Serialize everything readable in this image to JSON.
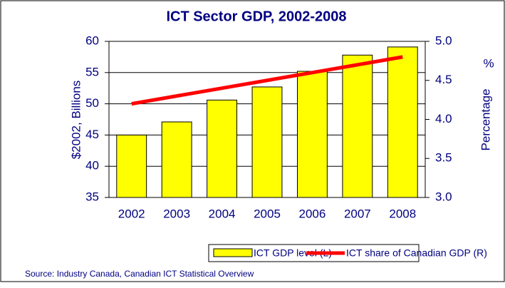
{
  "chart_data": {
    "type": "bar_line",
    "title": "ICT Sector GDP, 2002-2008",
    "y_label": "$2002, Billions",
    "y2_label": "Percentage",
    "y2_unit": "%",
    "source": "Source: Industry Canada, Canadian ICT Statistical Overview",
    "categories": [
      "2002",
      "2003",
      "2004",
      "2005",
      "2006",
      "2007",
      "2008"
    ],
    "series": [
      {
        "name": "ICT GDP level (L)",
        "type": "bar",
        "color": "#ffff00",
        "values": [
          45,
          47.1,
          50.6,
          52.7,
          55.2,
          57.8,
          59.1
        ]
      },
      {
        "name": "ICT share of Canadian GDP (R)",
        "type": "line",
        "axis": "y2",
        "color": "#ff0000",
        "values": [
          4.2,
          4.3,
          4.4,
          4.5,
          4.6,
          4.7,
          4.8
        ]
      }
    ],
    "ylim": [
      35,
      60
    ],
    "yticks": [
      35,
      40,
      45,
      50,
      55,
      60
    ],
    "y2lim": [
      3,
      5
    ],
    "y2ticks": [
      {
        "value": 3,
        "label": "3.0"
      },
      3.5,
      {
        "value": 4,
        "label": "4.0"
      },
      4.5,
      {
        "value": 5,
        "label": "5.0"
      }
    ],
    "grid": true,
    "legend": "bottom"
  }
}
